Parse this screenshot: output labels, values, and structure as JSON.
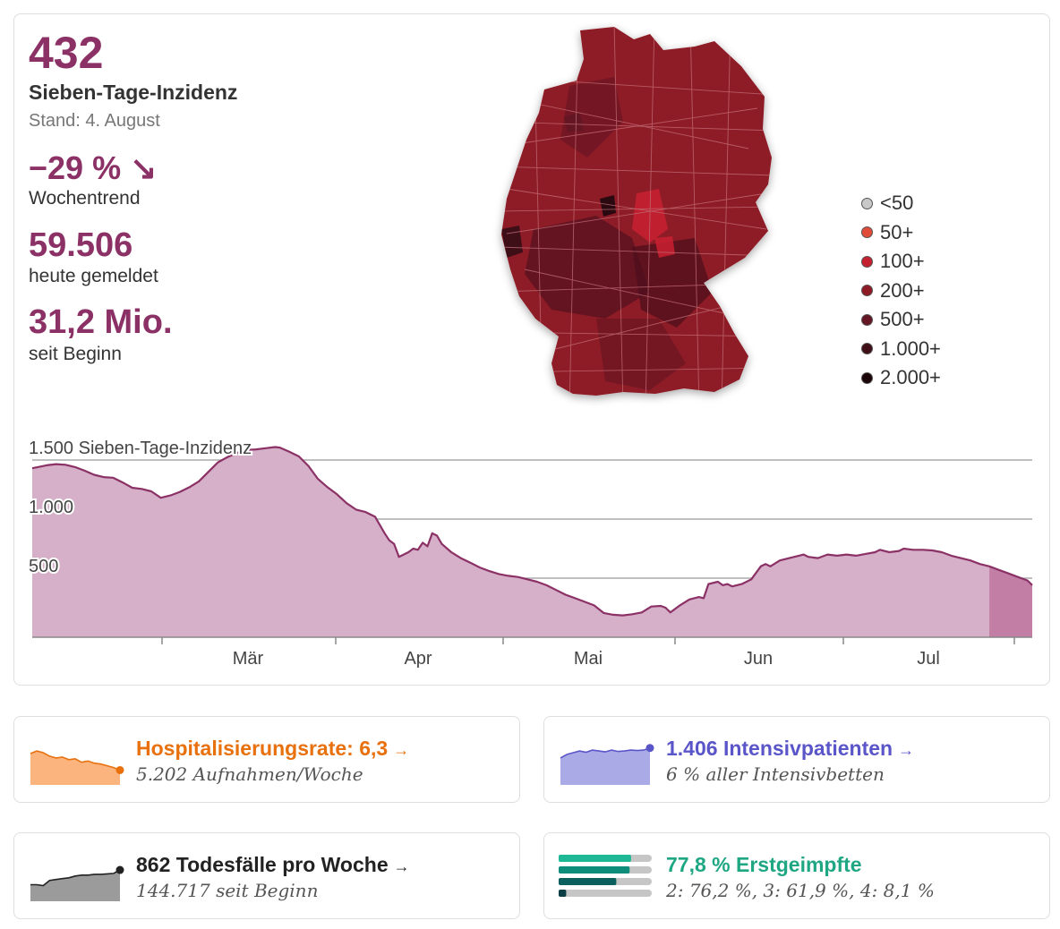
{
  "headline": {
    "value": "432",
    "label": "Sieben-Tage-Inzidenz",
    "stand": "Stand: 4. August"
  },
  "trend": {
    "value": "−29 %",
    "arrow": "↘",
    "label": "Wochentrend"
  },
  "today": {
    "value": "59.506",
    "label": "heute gemeldet"
  },
  "total": {
    "value": "31,2 Mio.",
    "label": "seit Beginn"
  },
  "map": {
    "fill_base": "#8e1a26"
  },
  "legend": [
    {
      "label": "<50",
      "color": "#c8c8c8"
    },
    {
      "label": "50+",
      "color": "#e14b3a"
    },
    {
      "label": "100+",
      "color": "#c42030"
    },
    {
      "label": "200+",
      "color": "#8e1a26"
    },
    {
      "label": "500+",
      "color": "#651624"
    },
    {
      "label": "1.000+",
      "color": "#3f0f18"
    },
    {
      "label": "2.000+",
      "color": "#1c0508"
    }
  ],
  "chart_data": {
    "type": "area",
    "ylabel": "Sieben-Tage-Inzidenz",
    "ylim": [
      0,
      1500
    ],
    "y_ticks": [
      {
        "value": 1500,
        "label": "1.500"
      },
      {
        "value": 1000,
        "label": "1.000"
      },
      {
        "value": 500,
        "label": "500"
      }
    ],
    "x_ticks": [
      "Mär",
      "Apr",
      "Mai",
      "Jun",
      "Jul"
    ],
    "x_tick_days": [
      28,
      56,
      84,
      112,
      140
    ],
    "x_range_days": [
      0,
      164
    ],
    "series": [
      {
        "values": [
          [
            0,
            1430
          ],
          [
            3,
            1455
          ],
          [
            5,
            1465
          ],
          [
            7,
            1460
          ],
          [
            9,
            1440
          ],
          [
            11,
            1410
          ],
          [
            13,
            1375
          ],
          [
            15,
            1355
          ],
          [
            17,
            1350
          ],
          [
            19,
            1310
          ],
          [
            21,
            1265
          ],
          [
            23,
            1255
          ],
          [
            25,
            1235
          ],
          [
            27,
            1180
          ],
          [
            29,
            1200
          ],
          [
            31,
            1230
          ],
          [
            33,
            1270
          ],
          [
            35,
            1320
          ],
          [
            37,
            1400
          ],
          [
            39,
            1480
          ],
          [
            41,
            1525
          ],
          [
            43,
            1560
          ],
          [
            45,
            1585
          ],
          [
            47,
            1590
          ],
          [
            49,
            1600
          ],
          [
            51,
            1610
          ],
          [
            52,
            1605
          ],
          [
            54,
            1570
          ],
          [
            56,
            1530
          ],
          [
            58,
            1450
          ],
          [
            60,
            1340
          ],
          [
            62,
            1270
          ],
          [
            64,
            1210
          ],
          [
            66,
            1135
          ],
          [
            68,
            1080
          ],
          [
            70,
            1060
          ],
          [
            72,
            1020
          ],
          [
            74,
            880
          ],
          [
            75,
            820
          ],
          [
            76,
            790
          ],
          [
            77,
            680
          ],
          [
            79,
            720
          ],
          [
            80,
            750
          ],
          [
            81,
            740
          ],
          [
            82,
            800
          ],
          [
            83,
            770
          ],
          [
            84,
            880
          ],
          [
            85,
            860
          ],
          [
            86,
            790
          ],
          [
            88,
            720
          ],
          [
            90,
            670
          ],
          [
            92,
            630
          ],
          [
            94,
            590
          ],
          [
            96,
            560
          ],
          [
            98,
            535
          ],
          [
            100,
            520
          ],
          [
            102,
            510
          ],
          [
            104,
            490
          ],
          [
            106,
            470
          ],
          [
            108,
            440
          ],
          [
            110,
            400
          ],
          [
            112,
            360
          ],
          [
            114,
            330
          ],
          [
            116,
            300
          ],
          [
            118,
            270
          ],
          [
            120,
            205
          ],
          [
            122,
            190
          ],
          [
            124,
            185
          ],
          [
            126,
            195
          ],
          [
            128,
            210
          ],
          [
            130,
            260
          ],
          [
            132,
            265
          ],
          [
            133,
            250
          ],
          [
            134,
            210
          ],
          [
            136,
            270
          ],
          [
            138,
            320
          ],
          [
            140,
            340
          ],
          [
            141,
            330
          ],
          [
            142,
            450
          ],
          [
            144,
            470
          ],
          [
            145,
            440
          ],
          [
            146,
            450
          ],
          [
            147,
            430
          ],
          [
            149,
            450
          ],
          [
            151,
            490
          ],
          [
            153,
            600
          ],
          [
            154,
            620
          ],
          [
            155,
            600
          ],
          [
            157,
            650
          ],
          [
            159,
            670
          ],
          [
            161,
            690
          ],
          [
            162,
            700
          ],
          [
            163,
            680
          ],
          [
            165,
            670
          ],
          [
            167,
            700
          ],
          [
            169,
            690
          ],
          [
            171,
            700
          ],
          [
            173,
            690
          ],
          [
            175,
            705
          ],
          [
            177,
            720
          ],
          [
            178,
            740
          ],
          [
            180,
            720
          ],
          [
            182,
            730
          ],
          [
            183,
            750
          ],
          [
            185,
            740
          ],
          [
            187,
            740
          ],
          [
            189,
            735
          ],
          [
            191,
            720
          ],
          [
            193,
            690
          ],
          [
            195,
            670
          ],
          [
            197,
            650
          ],
          [
            199,
            620
          ],
          [
            201,
            600
          ],
          [
            203,
            570
          ],
          [
            205,
            540
          ],
          [
            207,
            510
          ],
          [
            209,
            480
          ],
          [
            210,
            440
          ]
        ]
      }
    ],
    "highlight_start_day": 200,
    "area_color": "#d6b0c9",
    "line_color": "#8b3166",
    "highlight_color": "#c27ea4"
  },
  "hosp": {
    "title": "Hospitalisierungsrate: 6,3",
    "arrow": "→",
    "sub": "5.202 Aufnahmen/Woche",
    "color": "#e8700d",
    "fill": "#fbb47e",
    "spark": [
      0.72,
      0.78,
      0.74,
      0.66,
      0.62,
      0.64,
      0.58,
      0.6,
      0.52,
      0.55,
      0.5,
      0.48,
      0.44,
      0.4,
      0.34
    ]
  },
  "icu": {
    "title": "1.406 Intensivpatienten",
    "arrow": "→",
    "sub": "6 % aller Intensivbetten",
    "color": "#5a55c8",
    "fill": "#aaaae6",
    "spark": [
      0.62,
      0.7,
      0.74,
      0.78,
      0.75,
      0.8,
      0.78,
      0.76,
      0.8,
      0.77,
      0.78,
      0.8,
      0.79,
      0.8,
      0.85
    ]
  },
  "deaths": {
    "title": "862 Todesfälle pro Woche",
    "arrow": "→",
    "sub": "144.717 seit Beginn",
    "color": "#222222",
    "fill": "#9b9b9b",
    "spark": [
      0.38,
      0.38,
      0.36,
      0.48,
      0.5,
      0.52,
      0.54,
      0.58,
      0.6,
      0.6,
      0.62,
      0.62,
      0.63,
      0.64,
      0.72
    ]
  },
  "vacc": {
    "title": "77,8 % Erstgeimpfte",
    "sub": "2: 76,2 %, 3: 61,9 %, 4: 8,1 %",
    "color": "#1fa784",
    "bars": [
      {
        "value": 77.8,
        "color": "#1fb894"
      },
      {
        "value": 76.2,
        "color": "#0d8d7a"
      },
      {
        "value": 61.9,
        "color": "#0b5f5c"
      },
      {
        "value": 8.1,
        "color": "#0a3d44"
      }
    ]
  }
}
